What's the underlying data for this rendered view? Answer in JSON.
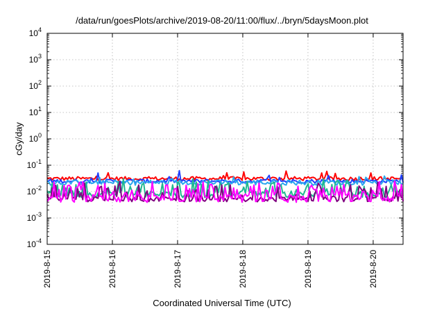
{
  "chart_data": {
    "type": "line",
    "title": "/data/run/goesPlots/archive/2019-08-20/11:00/flux/../bryn/5daysMoon.plot",
    "xlabel": "Coordinated Universal Time (UTC)",
    "ylabel": "cGy/day",
    "yscale": "log",
    "ylim": [
      0.0001,
      10000
    ],
    "xlim": [
      "2019-08-15T00:00",
      "2019-08-20T11:00"
    ],
    "y_ticks": [
      {
        "value": 0.0001,
        "base": "10",
        "exp": "-4"
      },
      {
        "value": 0.001,
        "base": "10",
        "exp": "-3"
      },
      {
        "value": 0.01,
        "base": "10",
        "exp": "-2"
      },
      {
        "value": 0.1,
        "base": "10",
        "exp": "-1"
      },
      {
        "value": 1,
        "base": "10",
        "exp": "0"
      },
      {
        "value": 10,
        "base": "10",
        "exp": "1"
      },
      {
        "value": 100,
        "base": "10",
        "exp": "2"
      },
      {
        "value": 1000,
        "base": "10",
        "exp": "3"
      },
      {
        "value": 10000,
        "base": "10",
        "exp": "4"
      }
    ],
    "x_ticks": [
      {
        "value": "2019-08-15T00:00",
        "label": "2019-8-15"
      },
      {
        "value": "2019-08-16T00:00",
        "label": "2019-8-16"
      },
      {
        "value": "2019-08-17T00:00",
        "label": "2019-8-17"
      },
      {
        "value": "2019-08-18T00:00",
        "label": "2019-8-18"
      },
      {
        "value": "2019-08-19T00:00",
        "label": "2019-8-19"
      },
      {
        "value": "2019-08-20T00:00",
        "label": "2019-8-20"
      }
    ],
    "grid": true,
    "legend": "none",
    "series": [
      {
        "color": "#ff0000",
        "level": 0.031,
        "spread": 0.15,
        "spike_prob": 0.06,
        "spike_factor": 2.0
      },
      {
        "color": "#1f3fff",
        "level": 0.025,
        "spread": 0.15,
        "spike_prob": 0.06,
        "spike_factor": 2.2
      },
      {
        "color": "#2aa7ee",
        "level": 0.022,
        "spread": 0.2,
        "spike_prob": 0.05,
        "spike_factor": 1.6
      },
      {
        "color": "#20b890",
        "level": 0.008,
        "spread": 0.25,
        "spike_prob": 0.35,
        "spike_factor": 3.0
      },
      {
        "color": "#800080",
        "level": 0.0052,
        "spread": 0.2,
        "spike_prob": 0.38,
        "spike_factor": 3.8
      },
      {
        "color": "#ff00ff",
        "level": 0.0055,
        "spread": 0.3,
        "spike_prob": 0.42,
        "spike_factor": 3.6
      }
    ]
  }
}
